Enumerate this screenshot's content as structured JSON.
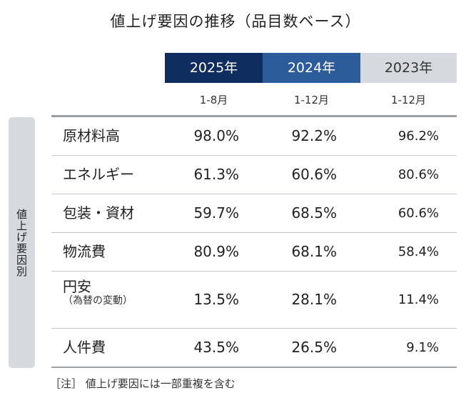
{
  "chart_data": {
    "type": "table",
    "title": "値上げ要因の推移（品目数ベース）",
    "columns": [
      {
        "year": "2025年",
        "period": "1-8月"
      },
      {
        "year": "2024年",
        "period": "1-12月"
      },
      {
        "year": "2023年",
        "period": "1-12月"
      }
    ],
    "side_label": "値上げ要因別",
    "rows": [
      {
        "label": "原材料高",
        "sublabel": "",
        "values": [
          "98.0%",
          "92.2%",
          "96.2%"
        ]
      },
      {
        "label": "エネルギー",
        "sublabel": "",
        "values": [
          "61.3%",
          "60.6%",
          "80.6%"
        ]
      },
      {
        "label": "包装・資材",
        "sublabel": "",
        "values": [
          "59.7%",
          "68.5%",
          "60.6%"
        ]
      },
      {
        "label": "物流費",
        "sublabel": "",
        "values": [
          "80.9%",
          "68.1%",
          "58.4%"
        ]
      },
      {
        "label": "円安",
        "sublabel": "（為替の変動）",
        "values": [
          "13.5%",
          "28.1%",
          "11.4%"
        ]
      },
      {
        "label": "人件費",
        "sublabel": "",
        "values": [
          "43.5%",
          "26.5%",
          "9.1%"
        ]
      }
    ],
    "note": "［注］ 値上げ要因には一部重複を含む"
  },
  "colors": {
    "col_2025": "#0f2d5e",
    "col_2024": "#2c5c9a",
    "col_2023": "#d6dadf"
  }
}
